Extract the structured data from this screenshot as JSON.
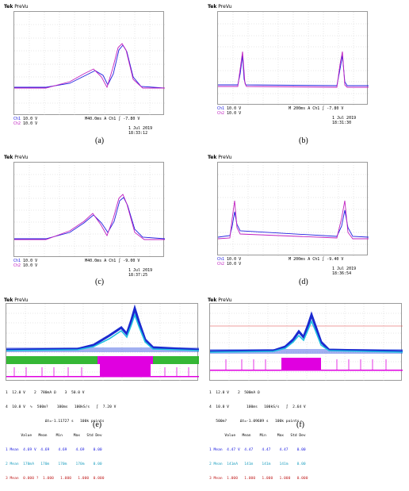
{
  "panels": {
    "a": {
      "caption": "(a)",
      "brand": "Tek",
      "mode": "PreVu",
      "ch1": "Ch1",
      "ch1_scale": "10.0 V",
      "ch2": "Ch2",
      "ch2_scale": "10.0 V",
      "timebase": "M40.0ms",
      "trigger": "A  Ch1 ∫ -7.80 V",
      "date": "1 Jul  2019",
      "time": "18:33:12"
    },
    "b": {
      "caption": "(b)",
      "brand": "Tek",
      "mode": "PreVu",
      "ch1": "Ch1",
      "ch1_scale": "10.0 V",
      "ch2": "Ch2",
      "ch2_scale": "10.0 V",
      "timebase": "M 200ms",
      "trigger": "A  Ch1 ∫ -7.80 V",
      "date": "1 Jul  2019",
      "time": "18:31:30"
    },
    "c": {
      "caption": "(c)",
      "brand": "Tek",
      "mode": "PreVu",
      "ch1": "Ch1",
      "ch1_scale": "10.0 V",
      "ch2": "Ch2",
      "ch2_scale": "10.0 V",
      "timebase": "M40.0ms",
      "trigger": "A  Ch1 ∫ -9.00 V",
      "date": "1 Jul  2019",
      "time": "18:37:25"
    },
    "d": {
      "caption": "(d)",
      "brand": "Tek",
      "mode": "PreVu",
      "ch1": "Ch1",
      "ch1_scale": "10.0 V",
      "ch2": "Ch2",
      "ch2_scale": "10.0 V",
      "timebase": "M 200ms",
      "trigger": "A  Ch1 ∫ -9.40 V",
      "date": "1 Jul  2019",
      "time": "18:36:54"
    },
    "e": {
      "caption": "(e)",
      "brand": "Tek",
      "mode": "PreVu",
      "row1": "1  12.0 V    2  780mA Ω    3  50.0 V",
      "row2": "4  10.0 V  ∿  500m?    100ms   100kS/s   ∫  7.20 V",
      "row3": "                  Δt=-1.11727 s   100k points",
      "thead": "       Value   Mean    Min     Max   Std Dev",
      "m1": "1 Mean  4.69 V  4.69    4.69    4.69    0.00",
      "m2": "2 Mean  170mA   170m    170m    170m    0.00",
      "m3": "3 Mean  0.000 ?  1.000   1.000   1.000  0.000"
    },
    "f": {
      "caption": "(f)",
      "brand": "Tek",
      "mode": "PreVu",
      "row1": "1  12.0 V    2  500mA Ω",
      "row2": "4  10.0 V        100ms   100kS/s   ∫  2.64 V",
      "row3": "   500m?      Δt=-1.09689 s   100k points",
      "thead": "       Value   Mean    Min     Max   Std Dev",
      "m1": "1 Mean  4.47 V  4.47    4.47    4.47    0.00",
      "m2": "2 Mean  141mA   141m    141m    141m    0.00",
      "m3": "3 Mean  1.000   1.000   1.000   1.000   0.000"
    }
  },
  "colors": {
    "ch1": "#2020e0",
    "ch2": "#c020c0",
    "ch3": "#20c0e0",
    "digital": "#e000e0",
    "green": "#20b020",
    "grid": "#9a9a9a"
  }
}
